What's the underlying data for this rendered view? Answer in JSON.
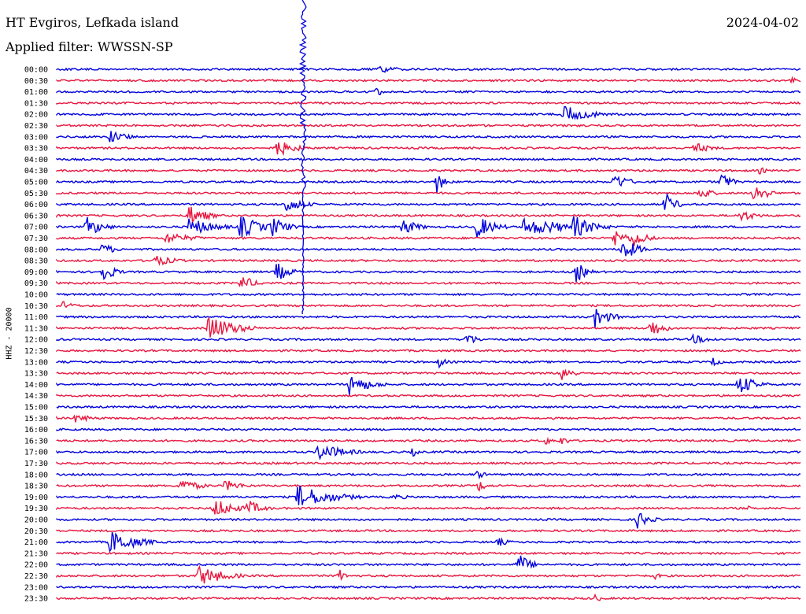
{
  "station": "HT Evgiros, Lefkada island",
  "filter": "Applied filter: WWSSN-SP",
  "date": "2024-04-02",
  "channel": "HHZ - 20000",
  "colors": {
    "even": "#0000dd",
    "odd": "#e8163e"
  },
  "hours": [
    "00:00",
    "00:30",
    "01:00",
    "01:30",
    "02:00",
    "02:30",
    "03:00",
    "03:30",
    "04:00",
    "04:30",
    "05:00",
    "05:30",
    "06:00",
    "06:30",
    "07:00",
    "07:30",
    "08:00",
    "08:30",
    "09:00",
    "09:30",
    "10:00",
    "10:30",
    "11:00",
    "11:30",
    "12:00",
    "12:30",
    "13:00",
    "13:30",
    "14:00",
    "14:30",
    "15:00",
    "15:30",
    "16:00",
    "16:30",
    "17:00",
    "17:30",
    "18:00",
    "18:30",
    "19:00",
    "19:30",
    "20:00",
    "20:30",
    "21:00",
    "21:30",
    "22:00",
    "22:30",
    "23:00",
    "23:30"
  ]
}
